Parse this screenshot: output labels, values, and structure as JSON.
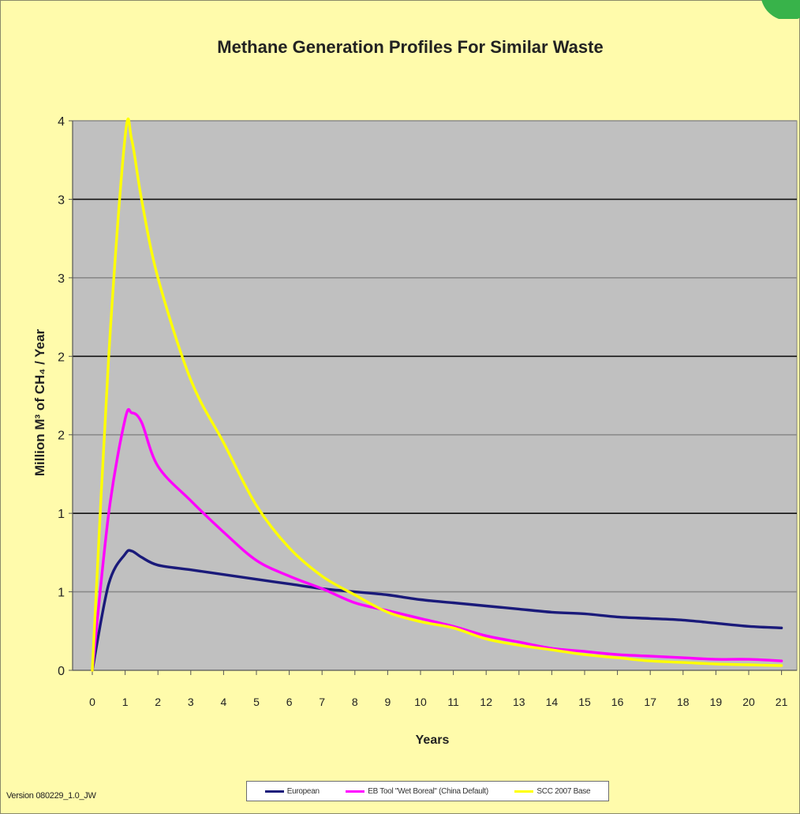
{
  "chart_data": {
    "type": "line",
    "title": "Methane Generation Profiles For Similar Waste",
    "xlabel": "Years",
    "ylabel": "Million M³ of CH₄ / Year",
    "x": [
      0,
      0.5,
      1,
      1.2,
      1.5,
      2,
      3,
      4,
      5,
      6,
      7,
      8,
      9,
      10,
      11,
      12,
      13,
      14,
      15,
      16,
      17,
      18,
      19,
      20,
      21
    ],
    "xticks": [
      "0",
      "1",
      "2",
      "3",
      "4",
      "5",
      "6",
      "7",
      "8",
      "9",
      "10",
      "11",
      "12",
      "13",
      "14",
      "15",
      "16",
      "17",
      "18",
      "19",
      "20",
      "21"
    ],
    "ylim": [
      0,
      3.5
    ],
    "yticks": [
      0,
      0.5,
      1,
      1.5,
      2,
      2.5,
      3,
      3.5
    ],
    "ytick_labels": [
      "0",
      "1",
      "1",
      "2",
      "2",
      "3",
      "3",
      "4"
    ],
    "grid": true,
    "legend_position": "bottom",
    "series": [
      {
        "name": "European",
        "color": "#1a1a7a",
        "values": [
          0.0,
          0.55,
          0.74,
          0.76,
          0.72,
          0.67,
          0.64,
          0.61,
          0.58,
          0.55,
          0.52,
          0.5,
          0.48,
          0.45,
          0.43,
          0.41,
          0.39,
          0.37,
          0.36,
          0.34,
          0.33,
          0.32,
          0.3,
          0.28,
          0.27
        ]
      },
      {
        "name": "EB Tool \"Wet Boreal\" (China Default)",
        "color": "#ff00ff",
        "values": [
          0.0,
          1.0,
          1.6,
          1.64,
          1.58,
          1.3,
          1.08,
          0.88,
          0.7,
          0.6,
          0.52,
          0.43,
          0.38,
          0.33,
          0.28,
          0.22,
          0.18,
          0.14,
          0.12,
          0.1,
          0.09,
          0.08,
          0.07,
          0.07,
          0.06
        ]
      },
      {
        "name": "SCC 2007 Base",
        "color": "#ffff00",
        "values": [
          0.0,
          2.0,
          3.4,
          3.38,
          3.0,
          2.5,
          1.85,
          1.45,
          1.05,
          0.78,
          0.6,
          0.48,
          0.37,
          0.31,
          0.27,
          0.2,
          0.16,
          0.13,
          0.1,
          0.08,
          0.06,
          0.05,
          0.04,
          0.035,
          0.03
        ]
      }
    ]
  },
  "footer": {
    "version": "Version 080229_1.0_JW"
  }
}
